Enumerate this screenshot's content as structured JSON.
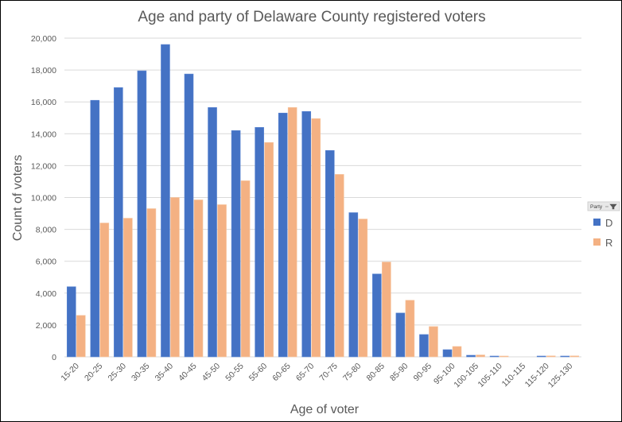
{
  "chart_data": {
    "type": "bar",
    "title": "Age and party of Delaware County registered voters",
    "xlabel": "Age of voter",
    "ylabel": "Count of voters",
    "ylim": [
      0,
      20000
    ],
    "yticks": [
      0,
      2000,
      4000,
      6000,
      8000,
      10000,
      12000,
      14000,
      16000,
      18000,
      20000
    ],
    "ytick_labels": [
      "0",
      "2,000",
      "4,000",
      "6,000",
      "8,000",
      "10,000",
      "12,000",
      "14,000",
      "16,000",
      "18,000",
      "20,000"
    ],
    "grid": true,
    "legend_placement": "right",
    "legend_title": "Party",
    "categories": [
      "15-20",
      "20-25",
      "25-30",
      "30-35",
      "35-40",
      "40-45",
      "45-50",
      "50-55",
      "55-60",
      "60-65",
      "65-70",
      "70-75",
      "75-80",
      "80-85",
      "85-90",
      "90-95",
      "95-100",
      "100-105",
      "105-110",
      "110-115",
      "115-120",
      "125-130"
    ],
    "series": [
      {
        "name": "D",
        "color": "#4472C4",
        "values": [
          4400,
          16100,
          16900,
          17950,
          19600,
          17750,
          15650,
          14200,
          14400,
          15300,
          15400,
          12950,
          9050,
          5200,
          2750,
          1400,
          450,
          100,
          10,
          0,
          10,
          10
        ]
      },
      {
        "name": "R",
        "color": "#F4B183",
        "values": [
          2600,
          8400,
          8700,
          9300,
          10000,
          9850,
          9550,
          11050,
          13450,
          15650,
          14950,
          11450,
          8650,
          5950,
          3550,
          1900,
          650,
          120,
          50,
          0,
          60,
          60
        ]
      }
    ]
  }
}
